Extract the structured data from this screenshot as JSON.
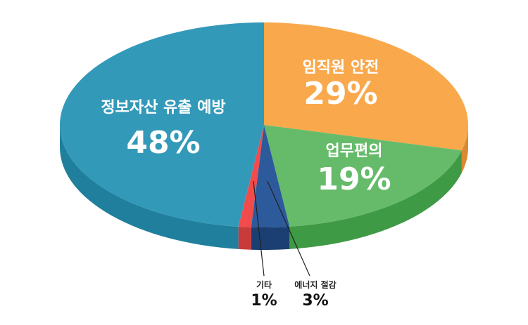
{
  "chart_data": {
    "type": "pie",
    "style": "3d",
    "slices": [
      {
        "name": "정보자산 유출 예방",
        "value": 48,
        "value_label": "48%",
        "color": "#3399b9",
        "side_color": "#1f7f9c"
      },
      {
        "name": "임직원 안전",
        "value": 29,
        "value_label": "29%",
        "color": "#f9a84c",
        "side_color": "#d98a33"
      },
      {
        "name": "업무편의",
        "value": 19,
        "value_label": "19%",
        "color": "#66bb6a",
        "side_color": "#3f9a45"
      },
      {
        "name": "에너지 절감",
        "value": 3,
        "value_label": "3%",
        "color": "#2d5a9a",
        "side_color": "#1b3f73"
      },
      {
        "name": "기타",
        "value": 1,
        "value_label": "1%",
        "color": "#f24b4b",
        "side_color": "#c93a3a"
      }
    ]
  }
}
